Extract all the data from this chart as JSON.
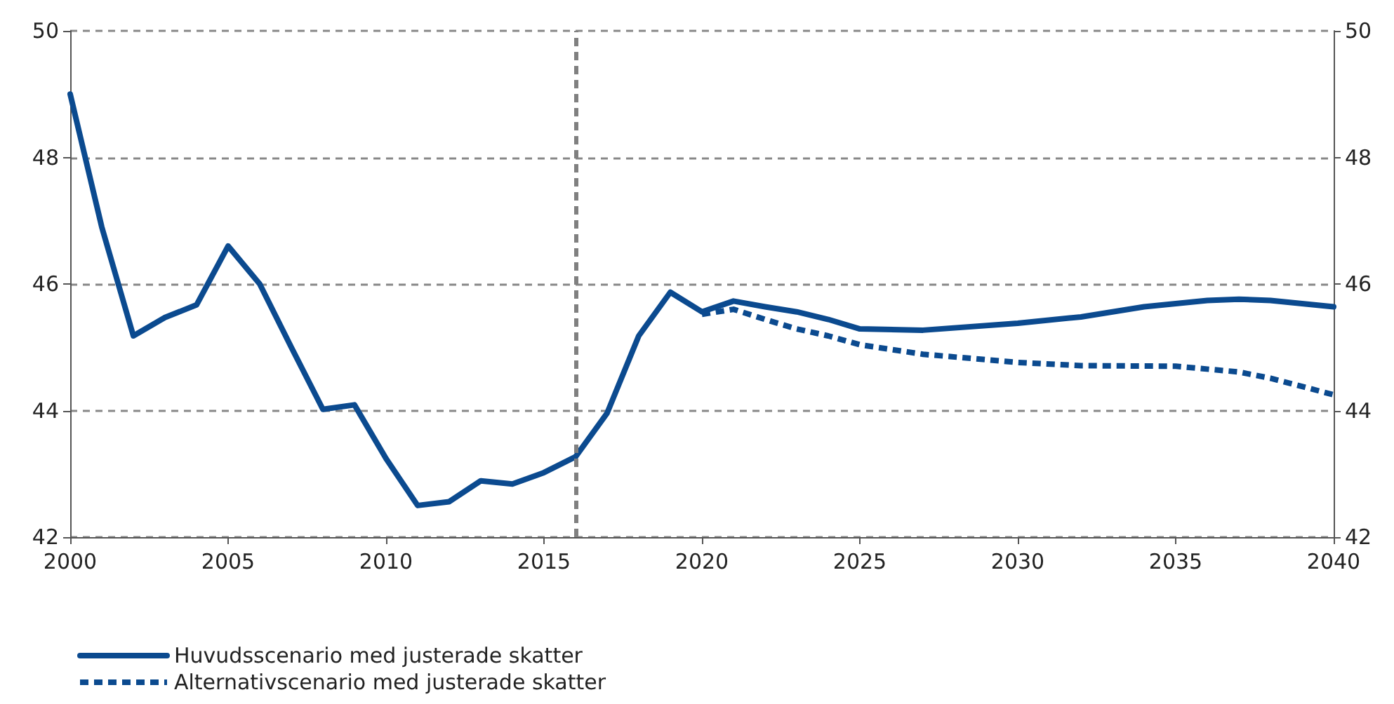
{
  "chart_data": {
    "type": "line",
    "xlim": [
      2000,
      2040
    ],
    "xticks": [
      2000,
      2005,
      2010,
      2015,
      2020,
      2025,
      2030,
      2035,
      2040
    ],
    "ylim": [
      42,
      50
    ],
    "yticks": [
      42,
      44,
      46,
      48,
      50
    ],
    "y2lim": [
      42,
      50
    ],
    "y2ticks": [
      42,
      44,
      46,
      48,
      50
    ],
    "grid": "y",
    "legend": "bottom left",
    "marker": "none",
    "ref_lines": [
      {
        "axis": "x",
        "value": 2016,
        "color": "#808080",
        "line_style": "dashed"
      }
    ],
    "series": [
      {
        "name": "Huvudsscenario med justerade skatter",
        "color": "#0b4a8f",
        "line_style": "solid",
        "x": [
          2000,
          2001,
          2002,
          2003,
          2004,
          2005,
          2006,
          2007,
          2008,
          2009,
          2010,
          2011,
          2012,
          2013,
          2014,
          2015,
          2016,
          2017,
          2018,
          2019,
          2020,
          2021,
          2022,
          2023,
          2024,
          2025,
          2027,
          2030,
          2032,
          2034,
          2036,
          2037,
          2038,
          2040
        ],
        "values": [
          49.0,
          46.9,
          45.18,
          45.47,
          45.67,
          46.6,
          46.0,
          45.0,
          44.02,
          44.09,
          43.24,
          42.5,
          42.56,
          42.89,
          42.84,
          43.02,
          43.27,
          43.96,
          45.18,
          45.87,
          45.56,
          45.73,
          45.64,
          45.56,
          45.44,
          45.29,
          45.27,
          45.38,
          45.48,
          45.64,
          45.74,
          45.76,
          45.74,
          45.64
        ]
      },
      {
        "name": "Alternativscenario med justerade skatter",
        "color": "#0b4a8f",
        "line_style": "dashed",
        "x": [
          2020,
          2021,
          2022,
          2023,
          2024,
          2025,
          2027,
          2030,
          2032,
          2035,
          2037,
          2038,
          2040
        ],
        "values": [
          45.52,
          45.6,
          45.44,
          45.29,
          45.18,
          45.04,
          44.89,
          44.76,
          44.71,
          44.7,
          44.61,
          44.51,
          44.25
        ]
      }
    ]
  }
}
